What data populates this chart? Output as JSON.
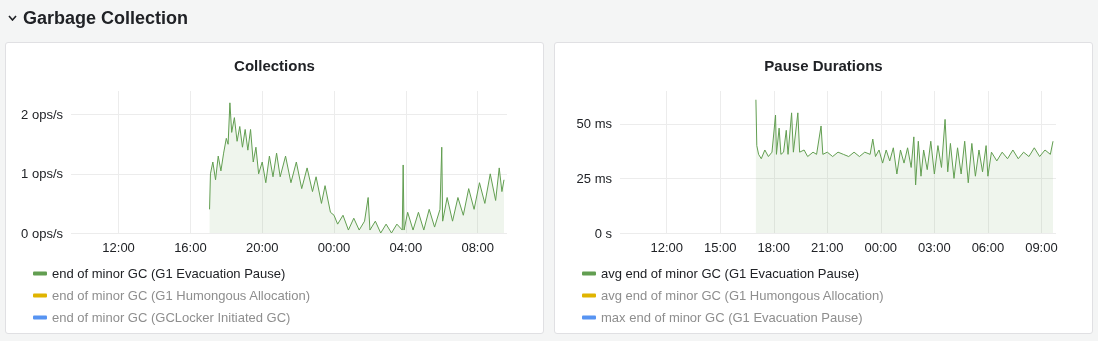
{
  "chart_data": [
    {
      "type": "area",
      "title": "Collections",
      "annotations": [
        "Garbage Collection"
      ],
      "xlim": [
        "--01-01T09:21",
        "--01-02T09:38"
      ],
      "xticks": [
        {
          "value": "--01-01T12:00",
          "label": "12:00"
        },
        {
          "value": "--01-01T16:00",
          "label": "16:00"
        },
        {
          "value": "--01-01T20:00",
          "label": "20:00"
        },
        {
          "value": "--01-02T00:00",
          "label": "00:00"
        },
        {
          "value": "--01-02T04:00",
          "label": "04:00"
        },
        {
          "value": "--01-02T08:00",
          "label": "08:00"
        }
      ],
      "ylim": [
        0,
        2.4
      ],
      "yticks": [
        {
          "value": 0,
          "label": "0 ops/s"
        },
        {
          "value": 1,
          "label": "1 ops/s"
        },
        {
          "value": 2,
          "label": "2 ops/s"
        }
      ],
      "grid": true,
      "legend": "bottom left",
      "marker": "none",
      "series": [
        {
          "name": "end of minor GC (G1 Evacuation Pause)",
          "color": "#629e51",
          "x": [
            "--01-01T17:04",
            "--01-01T17:07",
            "--01-01T17:15",
            "--01-01T17:24",
            "--01-01T17:33",
            "--01-01T17:42",
            "--01-01T17:51",
            "--01-01T18:00",
            "--01-01T18:06",
            "--01-01T18:12",
            "--01-01T18:18",
            "--01-01T18:27",
            "--01-01T18:36",
            "--01-01T18:45",
            "--01-01T18:54",
            "--01-01T19:03",
            "--01-01T19:12",
            "--01-01T19:21",
            "--01-01T19:30",
            "--01-01T19:39",
            "--01-01T19:48",
            "--01-01T20:00",
            "--01-01T20:12",
            "--01-01T20:24",
            "--01-01T20:36",
            "--01-01T20:48",
            "--01-01T21:00",
            "--01-01T21:18",
            "--01-01T21:36",
            "--01-01T21:54",
            "--01-01T22:12",
            "--01-01T22:30",
            "--01-01T22:48",
            "--01-01T23:00",
            "--01-01T23:18",
            "--01-01T23:30",
            "--01-01T23:48",
            "--01-02T00:00",
            "--01-02T00:12",
            "--01-02T00:30",
            "--01-02T00:48",
            "--01-02T01:06",
            "--01-02T01:24",
            "--01-02T01:42",
            "--01-02T01:54",
            "--01-02T02:00",
            "--01-02T02:18",
            "--01-02T02:36",
            "--01-02T02:54",
            "--01-02T03:12",
            "--01-02T03:30",
            "--01-02T03:48",
            "--01-02T03:51",
            "--01-02T03:54",
            "--01-02T04:06",
            "--01-02T04:24",
            "--01-02T04:42",
            "--01-02T05:00",
            "--01-02T05:18",
            "--01-02T05:36",
            "--01-02T05:54",
            "--01-02T06:00",
            "--01-02T06:03",
            "--01-02T06:18",
            "--01-02T06:36",
            "--01-02T06:54",
            "--01-02T07:12",
            "--01-02T07:30",
            "--01-02T07:48",
            "--01-02T08:06",
            "--01-02T08:24",
            "--01-02T08:42",
            "--01-02T09:00",
            "--01-02T09:12",
            "--01-02T09:21",
            "--01-02T09:28"
          ],
          "values": [
            0.4,
            1.0,
            1.2,
            0.9,
            1.3,
            1.05,
            1.35,
            1.6,
            1.5,
            2.2,
            1.7,
            1.95,
            1.55,
            1.8,
            1.45,
            1.75,
            1.4,
            1.75,
            1.2,
            1.45,
            1.0,
            1.2,
            0.85,
            1.3,
            0.95,
            1.35,
            0.95,
            1.3,
            0.85,
            1.2,
            0.75,
            1.1,
            0.7,
            0.95,
            0.5,
            0.8,
            0.35,
            0.3,
            0.15,
            0.3,
            0.05,
            0.25,
            0.05,
            0.2,
            0.6,
            0.05,
            0.2,
            0.0,
            0.15,
            0.0,
            0.15,
            0.05,
            1.15,
            0.05,
            0.35,
            0.05,
            0.35,
            0.05,
            0.4,
            0.1,
            0.4,
            1.45,
            0.2,
            0.6,
            0.2,
            0.6,
            0.3,
            0.75,
            0.4,
            0.85,
            0.5,
            1.0,
            0.55,
            1.1,
            0.7,
            0.9
          ]
        },
        {
          "name": "end of minor GC (G1 Humongous Allocation)",
          "color": "#e0b400"
        },
        {
          "name": "end of minor GC (GCLocker Initiated GC)",
          "color": "#5794f2"
        }
      ]
    },
    {
      "type": "area",
      "title": "Pause Durations",
      "xlim": [
        "--01-01T09:23",
        "--01-02T09:49"
      ],
      "xticks": [
        {
          "value": "--01-01T12:00",
          "label": "12:00"
        },
        {
          "value": "--01-01T15:00",
          "label": "15:00"
        },
        {
          "value": "--01-01T18:00",
          "label": "18:00"
        },
        {
          "value": "--01-01T21:00",
          "label": "21:00"
        },
        {
          "value": "--01-02T00:00",
          "label": "00:00"
        },
        {
          "value": "--01-02T03:00",
          "label": "03:00"
        },
        {
          "value": "--01-02T06:00",
          "label": "06:00"
        },
        {
          "value": "--01-02T09:00",
          "label": "09:00"
        }
      ],
      "ylim": [
        0,
        65
      ],
      "yticks": [
        {
          "value": 0,
          "label": "0 s"
        },
        {
          "value": 25,
          "label": "25 ms"
        },
        {
          "value": 50,
          "label": "50 ms"
        }
      ],
      "grid": true,
      "legend": "bottom left",
      "marker": "none",
      "series": [
        {
          "name": "avg end of minor GC (G1 Evacuation Pause)",
          "color": "#629e51",
          "x": [
            "--01-01T17:00",
            "--01-01T17:03",
            "--01-01T17:09",
            "--01-01T17:18",
            "--01-01T17:30",
            "--01-01T17:42",
            "--01-01T17:54",
            "--01-01T18:06",
            "--01-01T18:09",
            "--01-01T18:18",
            "--01-01T18:24",
            "--01-01T18:33",
            "--01-01T18:42",
            "--01-01T18:48",
            "--01-01T19:00",
            "--01-01T19:06",
            "--01-01T19:21",
            "--01-01T19:27",
            "--01-01T19:42",
            "--01-01T19:54",
            "--01-01T20:12",
            "--01-01T20:24",
            "--01-01T20:39",
            "--01-01T20:45",
            "--01-01T21:00",
            "--01-01T21:18",
            "--01-01T21:36",
            "--01-01T21:54",
            "--01-01T22:12",
            "--01-01T22:30",
            "--01-01T22:48",
            "--01-01T23:06",
            "--01-01T23:24",
            "--01-01T23:33",
            "--01-01T23:42",
            "--01-01T23:54",
            "--01-02T00:06",
            "--01-02T00:18",
            "--01-02T00:30",
            "--01-02T00:42",
            "--01-02T00:54",
            "--01-02T01:06",
            "--01-02T01:18",
            "--01-02T01:30",
            "--01-02T01:42",
            "--01-02T01:51",
            "--01-02T01:57",
            "--01-02T02:06",
            "--01-02T02:15",
            "--01-02T02:24",
            "--01-02T02:36",
            "--01-02T02:48",
            "--01-02T03:00",
            "--01-02T03:12",
            "--01-02T03:24",
            "--01-02T03:36",
            "--01-02T03:45",
            "--01-02T03:54",
            "--01-02T04:06",
            "--01-02T04:18",
            "--01-02T04:30",
            "--01-02T04:42",
            "--01-02T04:54",
            "--01-02T05:06",
            "--01-02T05:18",
            "--01-02T05:30",
            "--01-02T05:42",
            "--01-02T05:54",
            "--01-02T06:00",
            "--01-02T06:12",
            "--01-02T06:30",
            "--01-02T06:48",
            "--01-02T07:06",
            "--01-02T07:24",
            "--01-02T07:42",
            "--01-02T08:00",
            "--01-02T08:18",
            "--01-02T08:36",
            "--01-02T08:54",
            "--01-02T09:12",
            "--01-02T09:30",
            "--01-02T09:39"
          ],
          "values": [
            61,
            40,
            36,
            34,
            38,
            35,
            37,
            54,
            36,
            48,
            36,
            37,
            47,
            36,
            55,
            37,
            55,
            37,
            38,
            35,
            37,
            36,
            49,
            36,
            37,
            35,
            37,
            36,
            35,
            37,
            35,
            37,
            36,
            43,
            35,
            38,
            32,
            38,
            33,
            39,
            27,
            38,
            32,
            39,
            30,
            44,
            22,
            42,
            26,
            38,
            29,
            42,
            27,
            40,
            30,
            52,
            28,
            41,
            25,
            39,
            27,
            42,
            23,
            41,
            26,
            38,
            28,
            40,
            26,
            37,
            33,
            37,
            34,
            38,
            34,
            37,
            35,
            39,
            35,
            38,
            36,
            42
          ]
        },
        {
          "name": "avg end of minor GC (G1 Humongous Allocation)",
          "color": "#e0b400"
        },
        {
          "name": "max end of minor GC (G1 Evacuation Pause)",
          "color": "#5794f2"
        }
      ]
    }
  ]
}
